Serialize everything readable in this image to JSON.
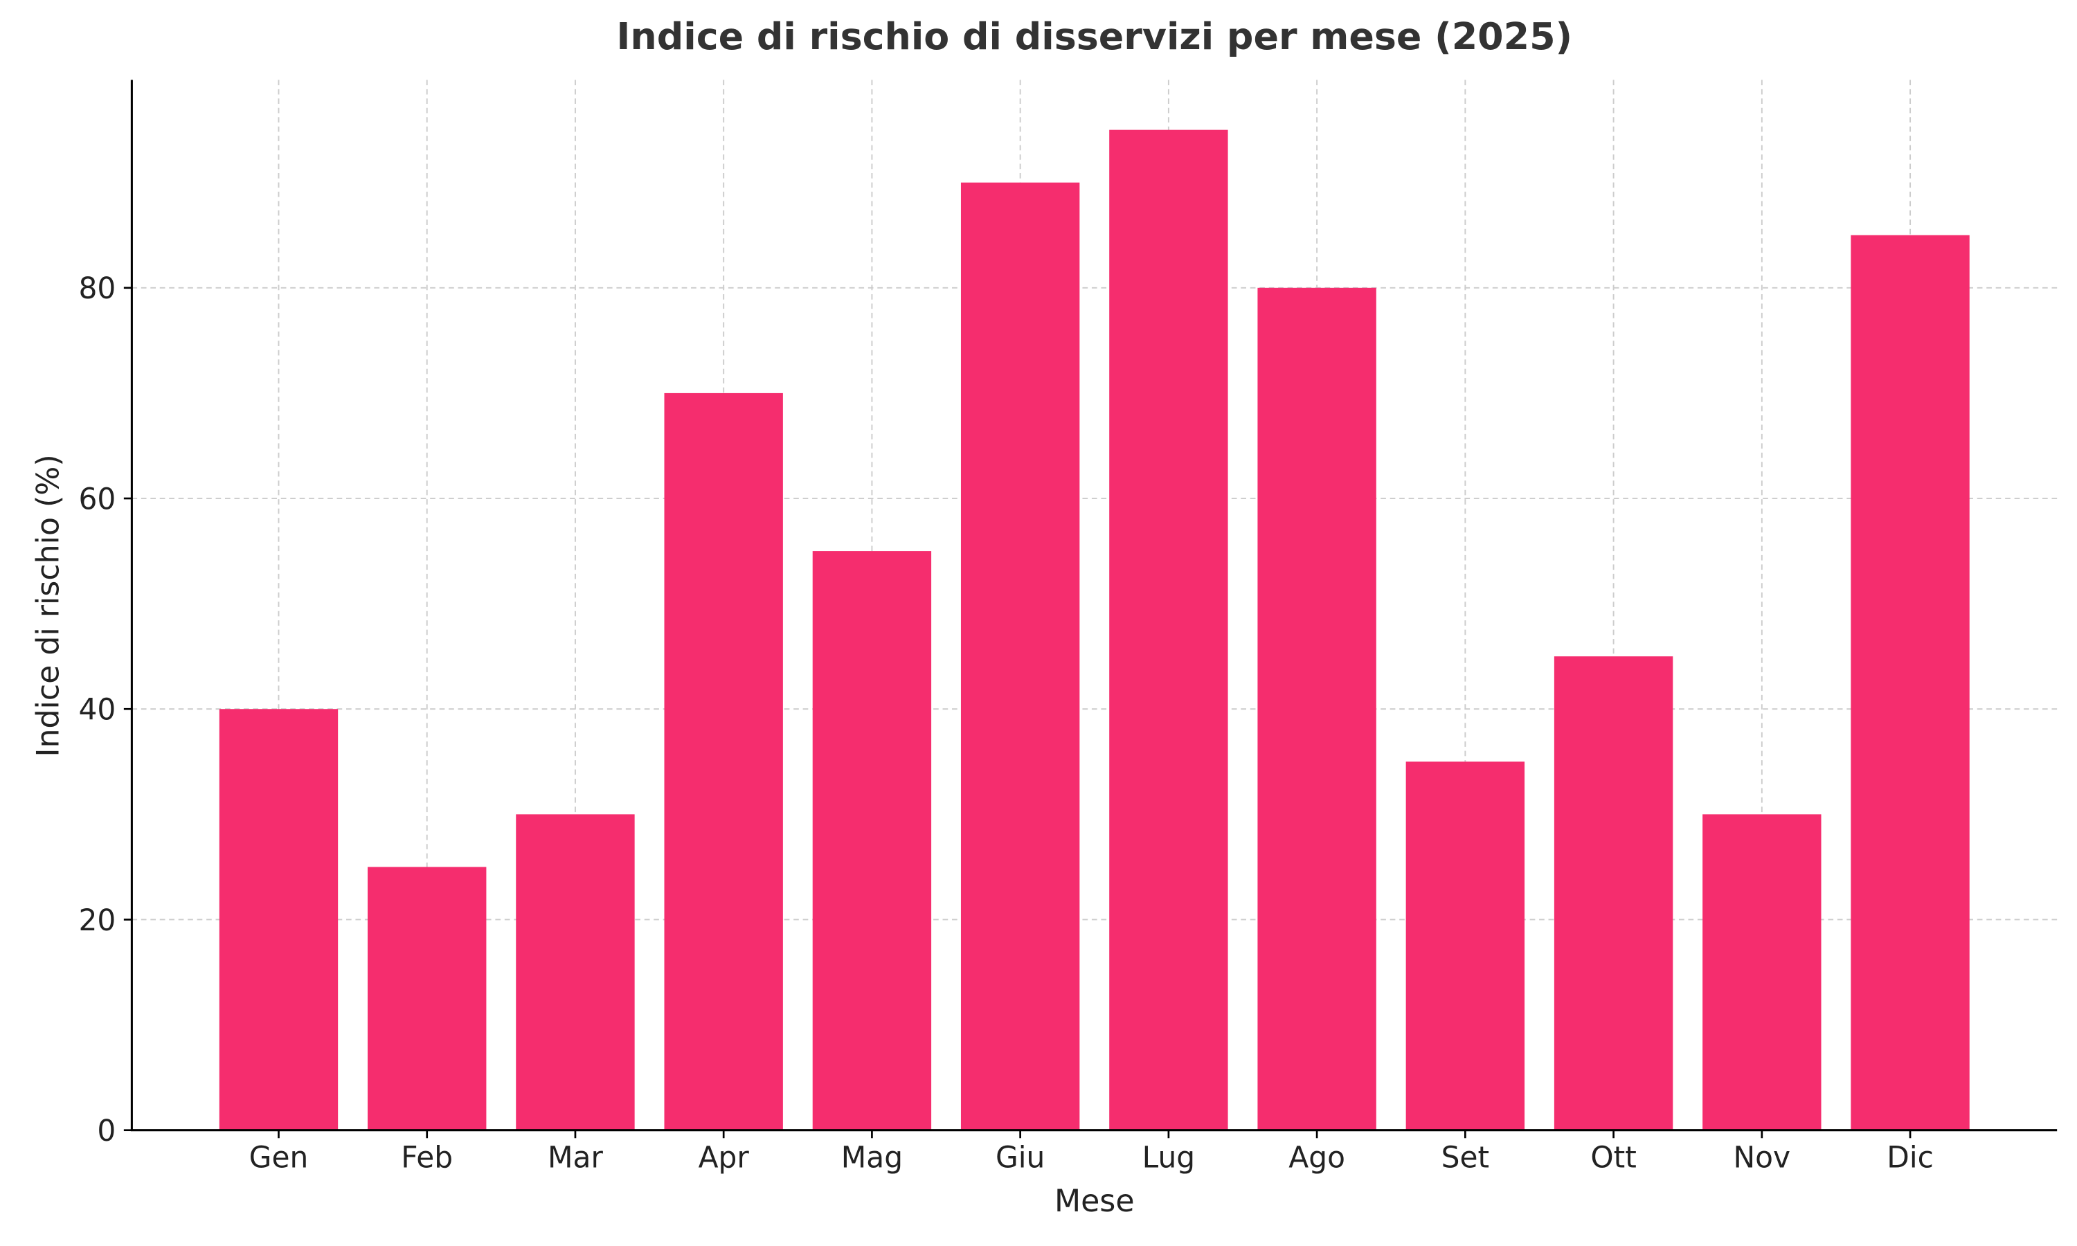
{
  "chart_data": {
    "type": "bar",
    "title": "Indice di rischio di disservizi per mese (2025)",
    "x_label": "Mese",
    "y_label": "Indice di rischio (%)",
    "categories": [
      "Gen",
      "Feb",
      "Mar",
      "Apr",
      "Mag",
      "Giu",
      "Lug",
      "Ago",
      "Set",
      "Ott",
      "Nov",
      "Dic"
    ],
    "values": [
      40,
      25,
      30,
      70,
      55,
      90,
      95,
      80,
      35,
      45,
      30,
      85
    ],
    "color": "#f52d6e",
    "ylim": [
      0,
      99.75
    ],
    "yticks": [
      0,
      20,
      40,
      60,
      80
    ],
    "grid": true
  }
}
